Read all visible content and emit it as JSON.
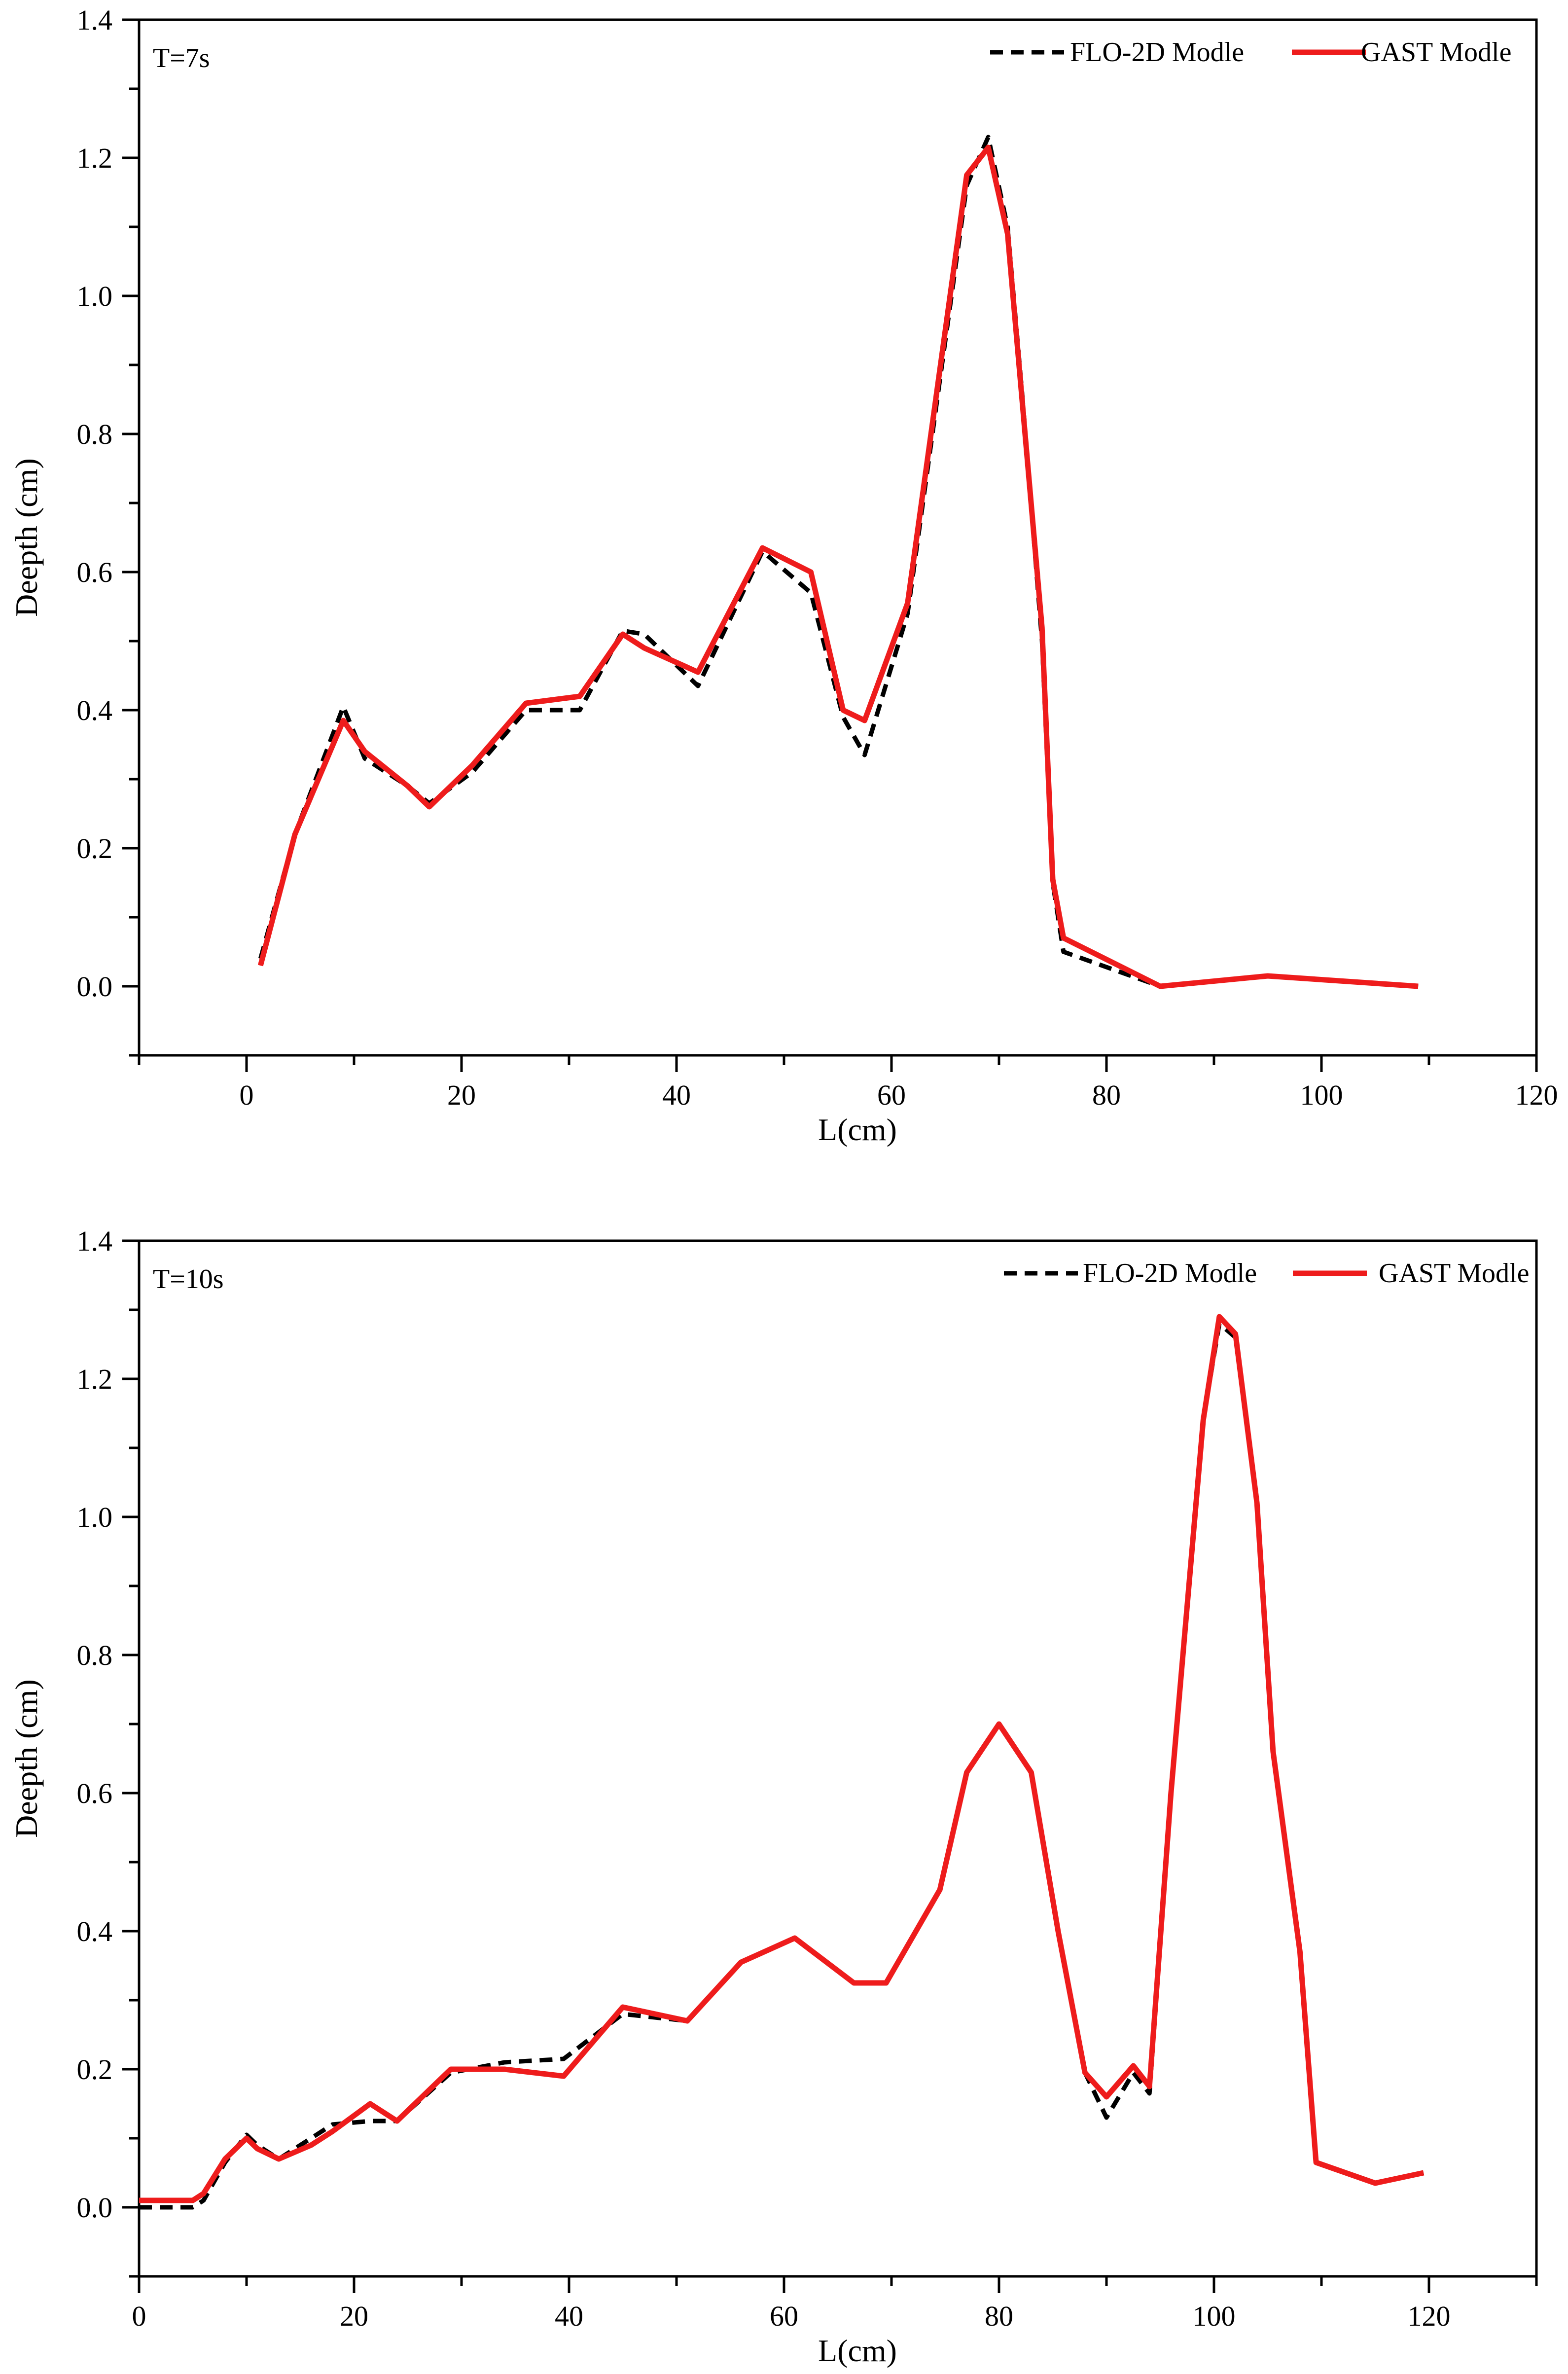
{
  "chart_data": [
    {
      "type": "line",
      "annotation": "T=7s",
      "xlabel": "L(cm)",
      "ylabel": "Deepth (cm)",
      "xlim": [
        -10,
        120
      ],
      "ylim": [
        -0.1,
        1.4
      ],
      "xticks": [
        0,
        20,
        40,
        60,
        80,
        100,
        120
      ],
      "xtick_labels": [
        "0",
        "20",
        "40",
        "60",
        "80",
        "100",
        "120"
      ],
      "yticks": [
        0.0,
        0.2,
        0.4,
        0.6,
        0.8,
        1.0,
        1.2,
        1.4
      ],
      "ytick_labels": [
        "0.0",
        "0.2",
        "0.4",
        "0.6",
        "0.8",
        "1.0",
        "1.2",
        "1.4"
      ],
      "legend": "top-right",
      "grid": false,
      "series": [
        {
          "name": "FLO-2D Modle",
          "color": "#000000",
          "style": "dashed",
          "x": [
            1.3,
            4.5,
            9,
            11,
            15,
            17,
            21,
            26,
            31,
            35,
            37,
            42,
            48,
            52.5,
            55.5,
            57.5,
            61.5,
            67,
            69,
            70.8,
            72.2,
            74,
            75,
            76,
            85,
            95,
            109
          ],
          "y": [
            0.04,
            0.22,
            0.405,
            0.33,
            0.29,
            0.265,
            0.31,
            0.4,
            0.4,
            0.515,
            0.51,
            0.435,
            0.63,
            0.57,
            0.39,
            0.335,
            0.54,
            1.16,
            1.23,
            1.1,
            0.85,
            0.5,
            0.15,
            0.05,
            0.0,
            0.015,
            0.0
          ]
        },
        {
          "name": "GAST Modle",
          "color": "#ee1c1c",
          "style": "solid",
          "x": [
            1.3,
            4.5,
            9,
            11,
            15,
            17,
            21,
            26,
            31,
            35,
            37,
            42,
            48,
            52.5,
            55.5,
            57.5,
            61.5,
            67,
            69,
            70.8,
            72.2,
            74,
            75,
            76,
            85,
            95,
            109
          ],
          "y": [
            0.03,
            0.22,
            0.385,
            0.34,
            0.29,
            0.26,
            0.32,
            0.41,
            0.42,
            0.51,
            0.49,
            0.455,
            0.635,
            0.6,
            0.4,
            0.385,
            0.555,
            1.175,
            1.215,
            1.09,
            0.84,
            0.52,
            0.155,
            0.07,
            0.0,
            0.015,
            0.0
          ]
        }
      ]
    },
    {
      "type": "line",
      "annotation": "T=10s",
      "xlabel": "L(cm)",
      "ylabel": "Deepth (cm)",
      "xlim": [
        0,
        130
      ],
      "ylim": [
        -0.1,
        1.4
      ],
      "xticks": [
        0,
        20,
        40,
        60,
        80,
        100,
        120
      ],
      "xtick_labels": [
        "0",
        "20",
        "40",
        "60",
        "80",
        "100",
        "120"
      ],
      "yticks": [
        0.0,
        0.2,
        0.4,
        0.6,
        0.8,
        1.0,
        1.2,
        1.4
      ],
      "ytick_labels": [
        "0.0",
        "0.2",
        "0.4",
        "0.6",
        "0.8",
        "1.0",
        "1.2",
        "1.4"
      ],
      "legend": "top-right",
      "grid": false,
      "series": [
        {
          "name": "FLO-2D Modle",
          "color": "#000000",
          "style": "dashed",
          "x": [
            0,
            5,
            6,
            8,
            10,
            11,
            13,
            16,
            18,
            21.5,
            24,
            29,
            34,
            39.5,
            45,
            51,
            56,
            61,
            66.5,
            69.5,
            74.5,
            77,
            80,
            83,
            85.5,
            88,
            90,
            92.5,
            94,
            96,
            99,
            100.5,
            102,
            104,
            105.5,
            108,
            109.5,
            115,
            119.5
          ],
          "y": [
            0.0,
            0.0,
            0.01,
            0.065,
            0.105,
            0.09,
            0.07,
            0.1,
            0.12,
            0.125,
            0.125,
            0.195,
            0.21,
            0.215,
            0.28,
            0.27,
            0.355,
            0.39,
            0.325,
            0.325,
            0.46,
            0.63,
            0.7,
            0.63,
            0.4,
            0.195,
            0.13,
            0.195,
            0.165,
            0.6,
            1.14,
            1.28,
            1.26,
            1.02,
            0.66,
            0.37,
            0.065,
            0.035,
            0.05
          ]
        },
        {
          "name": "GAST Modle",
          "color": "#ee1c1c",
          "style": "solid",
          "x": [
            0,
            5,
            6,
            8,
            10,
            11,
            13,
            16,
            18,
            21.5,
            24,
            29,
            34,
            39.5,
            45,
            51,
            56,
            61,
            66.5,
            69.5,
            74.5,
            77,
            80,
            83,
            85.5,
            88,
            90,
            92.5,
            94,
            96,
            99,
            100.5,
            102,
            104,
            105.5,
            108,
            109.5,
            115,
            119.5
          ],
          "y": [
            0.01,
            0.01,
            0.02,
            0.07,
            0.1,
            0.085,
            0.07,
            0.09,
            0.11,
            0.15,
            0.125,
            0.2,
            0.2,
            0.19,
            0.29,
            0.27,
            0.355,
            0.39,
            0.325,
            0.325,
            0.46,
            0.63,
            0.7,
            0.63,
            0.4,
            0.195,
            0.16,
            0.205,
            0.175,
            0.6,
            1.14,
            1.29,
            1.265,
            1.02,
            0.66,
            0.37,
            0.065,
            0.035,
            0.05
          ]
        }
      ]
    }
  ]
}
